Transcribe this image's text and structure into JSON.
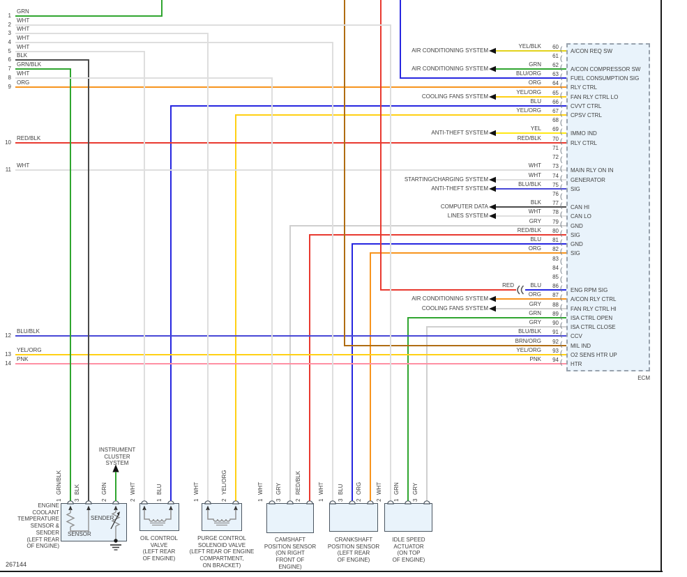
{
  "figure_number": "267144",
  "palette": {
    "GRN": "#2fa52f",
    "GRN/BLK": "#2fa52f",
    "WHT": "#dedede",
    "GRY": "#cfcfcf",
    "BLK": "#4a4a4a",
    "ORG": "#f7941d",
    "RED": "#e8392f",
    "RED/BLK": "#e8392f",
    "BLU": "#2626e0",
    "BLU/BLK": "#4747d6",
    "BLU/ORG": "#2626e0",
    "YEL": "#ffe814",
    "YEL/BLK": "#e3d21b",
    "YEL/ORG": "#ffd013",
    "PNK": "#ff8fa3",
    "BRN/ORG": "#b06c12",
    "arrow": "#111111",
    "frame": "#1a1a1a",
    "internal": "#8f8f8f",
    "symbol": "#333333"
  },
  "ecm": {
    "label": "ECM",
    "pins": [
      {
        "n": 60,
        "wire": "YEL/BLK",
        "label": "A/CON REQ SW",
        "system": "AIR CONDITIONING SYSTEM",
        "conn": "arrow"
      },
      {
        "n": 61
      },
      {
        "n": 62,
        "wire": "GRN",
        "label": "A/CON COMPRESSOR SW",
        "system": "AIR CONDITIONING SYSTEM",
        "conn": "arrow"
      },
      {
        "n": 63,
        "wire": "BLU/ORG",
        "label": "FUEL CONSUMPTION SIG",
        "conn": "top",
        "wire_draw": "BLU"
      },
      {
        "n": 64,
        "wire": "ORG",
        "label": "RLY CTRL",
        "conn": "row"
      },
      {
        "n": 65,
        "wire": "YEL/ORG",
        "label": "FAN RLY CTRL LO",
        "system": "COOLING FANS SYSTEM",
        "conn": "arrow"
      },
      {
        "n": 66,
        "wire": "BLU",
        "label": "CVVT CTRL",
        "conn": "drop"
      },
      {
        "n": 67,
        "wire": "YEL/ORG",
        "label": "CPSV CTRL",
        "conn": "drop"
      },
      {
        "n": 68
      },
      {
        "n": 69,
        "wire": "YEL",
        "label": "IMMO IND",
        "system": "ANTI-THEFT SYSTEM",
        "conn": "arrow"
      },
      {
        "n": 70,
        "wire": "RED/BLK",
        "label": "RLY CTRL",
        "conn": "row"
      },
      {
        "n": 71
      },
      {
        "n": 72
      },
      {
        "n": 73,
        "wire": "WHT",
        "label": "MAIN RLY ON IN",
        "conn": "row"
      },
      {
        "n": 74,
        "wire": "WHT",
        "label": "GENERATOR",
        "system": "STARTING/CHARGING SYSTEM",
        "conn": "arrow"
      },
      {
        "n": 75,
        "wire": "BLU/BLK",
        "label": "SIG",
        "system": "ANTI-THEFT SYSTEM",
        "conn": "arrow"
      },
      {
        "n": 76
      },
      {
        "n": 77,
        "wire": "BLK",
        "label": "CAN HI",
        "system": "COMPUTER DATA",
        "conn": "arrow"
      },
      {
        "n": 78,
        "wire": "WHT",
        "label": "CAN LO",
        "system": "LINES SYSTEM",
        "conn": "arrow"
      },
      {
        "n": 79,
        "wire": "GRY",
        "label": "GND",
        "conn": "drop"
      },
      {
        "n": 80,
        "wire": "RED/BLK",
        "label": "SIG",
        "conn": "drop"
      },
      {
        "n": 81,
        "wire": "BLU",
        "label": "GND",
        "conn": "drop"
      },
      {
        "n": 82,
        "wire": "ORG",
        "label": "SIG",
        "conn": "drop"
      },
      {
        "n": 83
      },
      {
        "n": 84
      },
      {
        "n": 85
      },
      {
        "n": 86,
        "wire": "BLU",
        "label": "ENG RPM SIG",
        "conn": "connector",
        "second_wire": "RED"
      },
      {
        "n": 87,
        "wire": "ORG",
        "label": "A/CON RLY CTRL",
        "system": "AIR CONDITIONING SYSTEM",
        "conn": "arrow"
      },
      {
        "n": 88,
        "wire": "GRY",
        "label": "FAN RLY CTRL HI",
        "system": "COOLING FANS SYSTEM",
        "conn": "arrow"
      },
      {
        "n": 89,
        "wire": "GRN",
        "label": "ISA CTRL OPEN",
        "conn": "drop"
      },
      {
        "n": 90,
        "wire": "GRY",
        "label": "ISA CTRL CLOSE",
        "conn": "drop"
      },
      {
        "n": 91,
        "wire": "BLU/BLK",
        "label": "CCV",
        "conn": "row"
      },
      {
        "n": 92,
        "wire": "BRN/ORG",
        "label": "MIL IND",
        "conn": "top"
      },
      {
        "n": 93,
        "wire": "YEL/ORG",
        "label": "O2 SENS HTR UP",
        "conn": "row"
      },
      {
        "n": 94,
        "wire": "PNK",
        "label": "HTR",
        "conn": "row"
      }
    ]
  },
  "left_rows": [
    {
      "n": "1",
      "wire": "GRN"
    },
    {
      "n": "2",
      "wire": "WHT"
    },
    {
      "n": "3",
      "wire": "WHT"
    },
    {
      "n": "4",
      "wire": "WHT"
    },
    {
      "n": "5",
      "wire": "WHT"
    },
    {
      "n": "6",
      "wire": "BLK"
    },
    {
      "n": "7",
      "wire": "GRN/BLK"
    },
    {
      "n": "8",
      "wire": "WHT"
    },
    {
      "n": "9",
      "wire": "ORG"
    },
    {
      "n": "10",
      "wire": "RED/BLK"
    },
    {
      "n": "11",
      "wire": "WHT"
    },
    {
      "n": "12",
      "wire": "BLU/BLK"
    },
    {
      "n": "13",
      "wire": "YEL/ORG"
    },
    {
      "n": "14",
      "wire": "PNK"
    }
  ],
  "connector_labels": {
    "red": "RED",
    "blu": "BLU"
  },
  "instrument_cluster": {
    "label_lines": [
      "INSTRUMENT",
      "CLUSTER",
      "SYSTEM"
    ]
  },
  "components": [
    {
      "id": "ect",
      "label_lines": [
        "ENGINE",
        "COOLANT",
        "TEMPERATURE",
        "SENSOR &",
        "SENDER",
        "(LEFT REAR",
        "OF ENGINE)"
      ],
      "internal_labels": {
        "sensor": "SENSOR",
        "sender": "SENDER"
      },
      "pins": [
        {
          "num": "1",
          "wire": "GRN/BLK"
        },
        {
          "num": "3",
          "wire": "BLK"
        },
        {
          "num": "2",
          "wire": "GRN"
        }
      ]
    },
    {
      "id": "ocv",
      "label_lines": [
        "OIL CONTROL",
        "VALVE",
        "(LEFT REAR",
        "OF ENGINE)"
      ],
      "pins": [
        {
          "num": "2",
          "wire": "WHT"
        },
        {
          "num": "1",
          "wire": "BLU"
        }
      ]
    },
    {
      "id": "pcsv",
      "label_lines": [
        "PURGE CONTROL",
        "SOLENOID VALVE",
        "(LEFT REAR OF ENGINE",
        "COMPARTMENT,",
        "ON BRACKET)"
      ],
      "pins": [
        {
          "num": "1",
          "wire": "WHT"
        },
        {
          "num": "2",
          "wire": "YEL/ORG"
        }
      ]
    },
    {
      "id": "cam",
      "label_lines": [
        "CAMSHAFT",
        "POSITION SENSOR",
        "(ON RIGHT",
        "FRONT OF",
        "ENGINE)"
      ],
      "pins": [
        {
          "num": "1",
          "wire": "WHT"
        },
        {
          "num": "3",
          "wire": "GRY"
        },
        {
          "num": "2",
          "wire": "RED/BLK"
        }
      ]
    },
    {
      "id": "crank",
      "label_lines": [
        "CRANKSHAFT",
        "POSITION SENSOR",
        "(LEFT REAR",
        "OF ENGINE)"
      ],
      "pins": [
        {
          "num": "1",
          "wire": "WHT"
        },
        {
          "num": "3",
          "wire": "BLU"
        },
        {
          "num": "2",
          "wire": "ORG"
        }
      ]
    },
    {
      "id": "isa",
      "label_lines": [
        "IDLE SPEED",
        "ACTUATOR",
        "(ON TOP",
        "OF ENGINE)"
      ],
      "pins": [
        {
          "num": "2",
          "wire": "WHT"
        },
        {
          "num": "1",
          "wire": "GRN"
        },
        {
          "num": "3",
          "wire": "GRY"
        }
      ]
    }
  ]
}
